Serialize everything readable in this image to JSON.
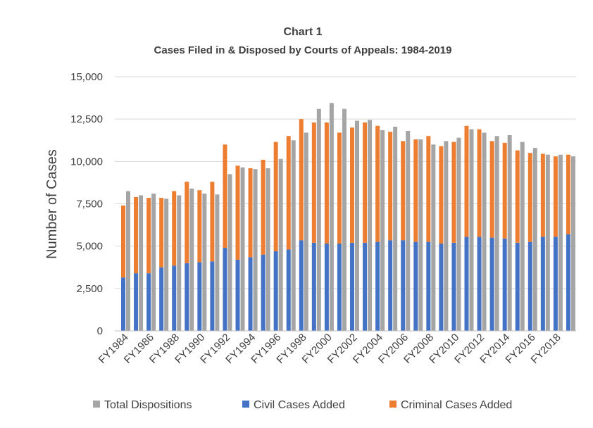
{
  "chart_data": {
    "type": "bar",
    "title": "Chart 1",
    "subtitle": "Cases Filed in & Disposed by Courts of Appeals: 1984-2019",
    "ylabel": "Number of Cases",
    "xlabel": "",
    "ylim": [
      0,
      15000
    ],
    "yticks": [
      "0",
      "2,500",
      "5,000",
      "7,500",
      "10,000",
      "12,500",
      "15,000"
    ],
    "ytick_values": [
      0,
      2500,
      5000,
      7500,
      10000,
      12500,
      15000
    ],
    "grid": true,
    "legend_position": "bottom",
    "categories": [
      "FY1984",
      "FY1985",
      "FY1986",
      "FY1987",
      "FY1988",
      "FY1989",
      "FY1990",
      "FY1991",
      "FY1992",
      "FY1993",
      "FY1994",
      "FY1995",
      "FY1996",
      "FY1997",
      "FY1998",
      "FY1999",
      "FY2000",
      "FY2001",
      "FY2002",
      "FY2003",
      "FY2004",
      "FY2005",
      "FY2006",
      "FY2007",
      "FY2008",
      "FY2009",
      "FY2010",
      "FY2011",
      "FY2012",
      "FY2013",
      "FY2014",
      "FY2015",
      "FY2016",
      "FY2017",
      "FY2018",
      "FY2019"
    ],
    "x_tick_labels": [
      "FY1984",
      "FY1986",
      "FY1988",
      "FY1990",
      "FY1992",
      "FY1994",
      "FY1996",
      "FY1998",
      "FY2000",
      "FY2002",
      "FY2004",
      "FY2006",
      "FY2008",
      "FY2010",
      "FY2012",
      "FY2014",
      "FY2016",
      "FY2018"
    ],
    "series": [
      {
        "name": "Total Dispositions",
        "color": "#a5a5a5",
        "values": [
          8250,
          8000,
          8100,
          7800,
          8000,
          8400,
          8100,
          8050,
          9250,
          9650,
          9550,
          9600,
          10150,
          11250,
          11700,
          13100,
          13450,
          13100,
          12400,
          12450,
          11850,
          12050,
          11800,
          11300,
          11000,
          11200,
          11400,
          11900,
          11700,
          11500,
          11550,
          11150,
          10800,
          10400,
          10400,
          10300
        ]
      },
      {
        "name": "Civil Cases Added",
        "color": "#4472c4",
        "stack": "filed",
        "values": [
          3150,
          3400,
          3400,
          3750,
          3850,
          4000,
          4050,
          4100,
          4900,
          4200,
          4350,
          4500,
          4700,
          4800,
          5350,
          5200,
          5150,
          5150,
          5200,
          5200,
          5250,
          5350,
          5350,
          5250,
          5250,
          5150,
          5200,
          5550,
          5550,
          5500,
          5450,
          5200,
          5250,
          5550,
          5550,
          5700
        ]
      },
      {
        "name": "Criminal Cases Added",
        "color": "#ed7d31",
        "stack": "filed",
        "values": [
          4250,
          4500,
          4450,
          4100,
          4400,
          4800,
          4250,
          4700,
          6100,
          5550,
          5250,
          5600,
          6450,
          6700,
          7150,
          7100,
          7150,
          6550,
          6800,
          7100,
          6850,
          6400,
          5850,
          6050,
          6250,
          5750,
          5950,
          6550,
          6350,
          5700,
          5650,
          5450,
          5250,
          4900,
          4750,
          4700
        ]
      }
    ]
  }
}
